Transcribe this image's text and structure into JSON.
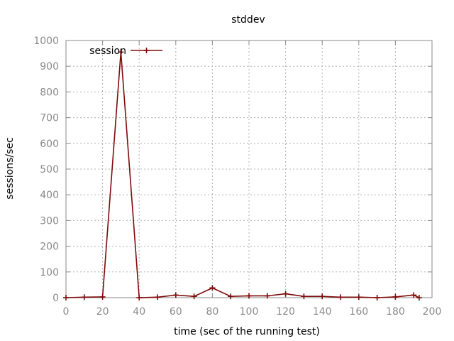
{
  "chart_data": {
    "type": "line",
    "title": "stddev",
    "xlabel": "time (sec of the running test)",
    "ylabel": "sessions/sec",
    "xlim": [
      0,
      200
    ],
    "ylim": [
      0,
      1000
    ],
    "x_ticks": [
      0,
      20,
      40,
      60,
      80,
      100,
      120,
      140,
      160,
      180,
      200
    ],
    "y_ticks": [
      0,
      100,
      200,
      300,
      400,
      500,
      600,
      700,
      800,
      900,
      1000
    ],
    "grid": true,
    "legend_position": "top-left",
    "series": [
      {
        "name": "session",
        "color": "#7f0a0a",
        "marker": "plus",
        "points": [
          [
            0,
            0
          ],
          [
            10,
            2
          ],
          [
            20,
            3
          ],
          [
            30,
            955
          ],
          [
            40,
            0
          ],
          [
            50,
            2
          ],
          [
            60,
            10
          ],
          [
            70,
            5
          ],
          [
            80,
            38
          ],
          [
            90,
            5
          ],
          [
            100,
            7
          ],
          [
            110,
            7
          ],
          [
            120,
            15
          ],
          [
            130,
            5
          ],
          [
            140,
            5
          ],
          [
            150,
            2
          ],
          [
            160,
            2
          ],
          [
            170,
            0
          ],
          [
            180,
            3
          ],
          [
            190,
            10
          ],
          [
            193,
            0
          ]
        ]
      }
    ]
  }
}
